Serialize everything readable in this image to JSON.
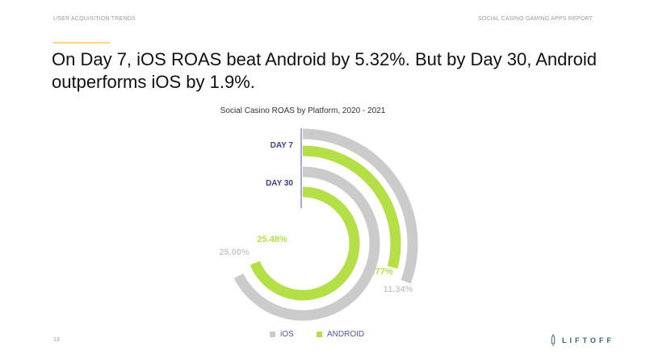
{
  "header": {
    "left": "USER ACQUISITION TRENDS",
    "right": "SOCIAL CASINO GAMING APPS REPORT"
  },
  "headline": "On Day 7, iOS ROAS beat Android by 5.32%. But by Day 30, Android outperforms iOS by 1.9%.",
  "page_number": "13",
  "logo": "LIFTOFF",
  "colors": {
    "ios": "#cbcbcb",
    "android": "#b4df46",
    "day_label": "#3a3f99",
    "accent": "#f8d97a"
  },
  "chart_data": {
    "type": "radial-bar",
    "title": "Social Casino ROAS by Platform, 2020 - 2021",
    "groups": [
      {
        "label": "DAY 7",
        "series": [
          {
            "name": "iOS",
            "value": 11.34,
            "label": "11.34%"
          },
          {
            "name": "ANDROID",
            "value": 10.77,
            "label": "10.77%"
          }
        ]
      },
      {
        "label": "DAY 30",
        "series": [
          {
            "name": "iOS",
            "value": 25.0,
            "label": "25.00%"
          },
          {
            "name": "ANDROID",
            "value": 25.48,
            "label": "25.48%"
          }
        ]
      }
    ],
    "legend": {
      "position": "bottom",
      "entries": [
        "iOS",
        "ANDROID"
      ]
    }
  }
}
